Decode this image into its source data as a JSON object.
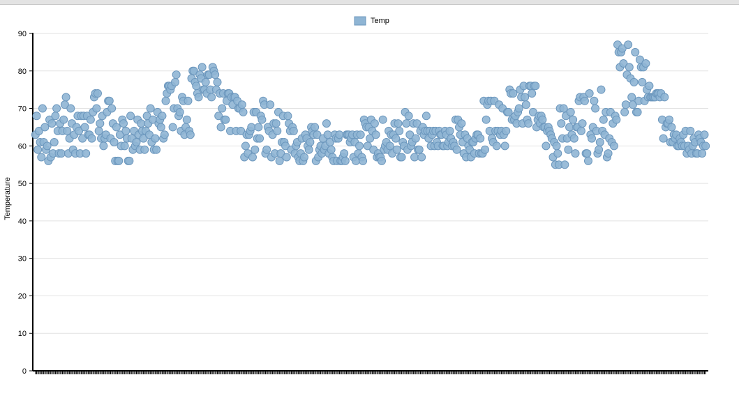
{
  "chart_data": {
    "type": "scatter",
    "ylabel": "Temperature",
    "ylim": [
      0,
      90
    ],
    "yticks": [
      0,
      10,
      20,
      30,
      40,
      50,
      60,
      70,
      80,
      90
    ],
    "grid": "horizontal",
    "legend_position": "top-center",
    "series": [
      {
        "name": "Temp",
        "color": "#8fb5d4",
        "stroke": "#6c97bd",
        "values": [
          63,
          68,
          59,
          64,
          61,
          57,
          70,
          61,
          65,
          59,
          60,
          56,
          67,
          57,
          66,
          58,
          61,
          68,
          70,
          64,
          58,
          66,
          58,
          64,
          67,
          71,
          73,
          64,
          58,
          62,
          70,
          66,
          59,
          63,
          58,
          65,
          68,
          64,
          58,
          68,
          62,
          68,
          65,
          58,
          68,
          63,
          63,
          67,
          62,
          69,
          73,
          74,
          70,
          74,
          64,
          66,
          62,
          68,
          60,
          62,
          63,
          69,
          72,
          72,
          62,
          70,
          66,
          61,
          56,
          65,
          56,
          56,
          63,
          60,
          67,
          66,
          60,
          64,
          62,
          56,
          56,
          68,
          62,
          59,
          64,
          60,
          61,
          67,
          63,
          59,
          66,
          64,
          62,
          59,
          64,
          68,
          66,
          63,
          70,
          61,
          67,
          59,
          62,
          59,
          69,
          66,
          67,
          65,
          68,
          62,
          63,
          72,
          74,
          76,
          76,
          75,
          76,
          65,
          70,
          77,
          79,
          70,
          68,
          69,
          64,
          73,
          72,
          63,
          65,
          67,
          72,
          64,
          63,
          78,
          80,
          80,
          77,
          76,
          74,
          73,
          79,
          78,
          81,
          75,
          75,
          77,
          74,
          79,
          79,
          75,
          73,
          81,
          80,
          79,
          75,
          77,
          68,
          74,
          65,
          70,
          74,
          67,
          67,
          72,
          74,
          74,
          64,
          73,
          71,
          73,
          73,
          64,
          72,
          70,
          70,
          64,
          71,
          69,
          57,
          60,
          63,
          58,
          63,
          64,
          65,
          57,
          69,
          59,
          69,
          62,
          65,
          62,
          68,
          67,
          72,
          71,
          58,
          59,
          65,
          64,
          71,
          57,
          63,
          66,
          58,
          66,
          64,
          69,
          56,
          58,
          61,
          68,
          61,
          60,
          57,
          68,
          66,
          64,
          59,
          65,
          64,
          58,
          60,
          61,
          57,
          56,
          58,
          62,
          56,
          57,
          63,
          62,
          60,
          59,
          61,
          65,
          64,
          63,
          65,
          56,
          63,
          57,
          59,
          60,
          58,
          62,
          59,
          60,
          66,
          63,
          58,
          61,
          59,
          57,
          56,
          63,
          62,
          56,
          62,
          63,
          56,
          56,
          57,
          58,
          56,
          63,
          63,
          63,
          61,
          62,
          63,
          57,
          61,
          56,
          63,
          58,
          60,
          63,
          57,
          56,
          67,
          66,
          65,
          60,
          65,
          62,
          67,
          64,
          59,
          66,
          63,
          57,
          58,
          57,
          57,
          56,
          67,
          59,
          60,
          61,
          59,
          64,
          60,
          63,
          58,
          63,
          66,
          62,
          59,
          66,
          64,
          57,
          57,
          61,
          60,
          69,
          66,
          59,
          68,
          63,
          60,
          61,
          66,
          57,
          62,
          66,
          59,
          59,
          64,
          57,
          65,
          63,
          64,
          68,
          64,
          62,
          64,
          60,
          63,
          64,
          60,
          64,
          61,
          60,
          64,
          63,
          63,
          60,
          60,
          64,
          63,
          60,
          61,
          64,
          62,
          60,
          61,
          60,
          67,
          59,
          67,
          65,
          63,
          66,
          61,
          58,
          63,
          57,
          62,
          60,
          59,
          57,
          61,
          61,
          58,
          62,
          63,
          63,
          58,
          62,
          58,
          58,
          72,
          59,
          67,
          71,
          72,
          64,
          72,
          62,
          61,
          72,
          64,
          60,
          64,
          71,
          63,
          64,
          70,
          63,
          60,
          64,
          69,
          69,
          75,
          74,
          67,
          74,
          67,
          68,
          66,
          69,
          70,
          75,
          73,
          66,
          76,
          73,
          71,
          67,
          66,
          76,
          76,
          74,
          69,
          76,
          76,
          65,
          67,
          68,
          66,
          68,
          67,
          65,
          65,
          60,
          64,
          65,
          64,
          63,
          62,
          57,
          61,
          55,
          60,
          58,
          55,
          70,
          66,
          62,
          70,
          55,
          68,
          62,
          59,
          65,
          69,
          63,
          67,
          62,
          58,
          65,
          65,
          72,
          73,
          64,
          66,
          73,
          72,
          58,
          58,
          56,
          74,
          63,
          62,
          65,
          72,
          70,
          64,
          58,
          59,
          61,
          75,
          64,
          67,
          63,
          69,
          57,
          58,
          62,
          69,
          61,
          66,
          60,
          68,
          67,
          87,
          85,
          81,
          85,
          86,
          82,
          69,
          71,
          79,
          87,
          81,
          78,
          73,
          71,
          77,
          85,
          69,
          69,
          72,
          83,
          81,
          77,
          81,
          72,
          82,
          75,
          73,
          76,
          73,
          73,
          73,
          73,
          73,
          74,
          74,
          74,
          73,
          74,
          67,
          62,
          73,
          65,
          66,
          66,
          67,
          61,
          65,
          61,
          63,
          62,
          63,
          60,
          60,
          62,
          61,
          60,
          63,
          60,
          64,
          58,
          60,
          59,
          64,
          58,
          60,
          62,
          61,
          58,
          58,
          63,
          62,
          61,
          58,
          60,
          63,
          60
        ]
      }
    ]
  }
}
